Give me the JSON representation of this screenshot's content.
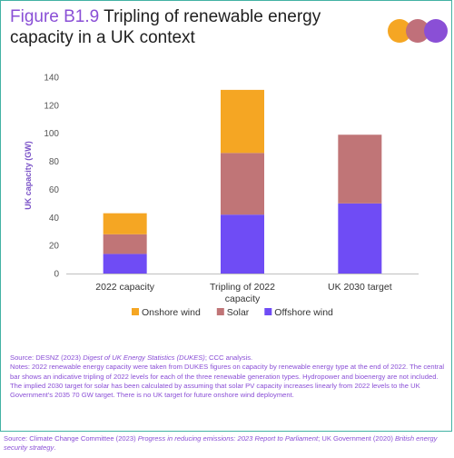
{
  "header": {
    "figure_label": "Figure B1.9",
    "title_text": "Tripling of renewable energy capacity in a UK context"
  },
  "logo": {
    "icon": "ccc-three-circles-icon",
    "colors": [
      "#f5a623",
      "#c0707a",
      "#8a4fd6"
    ]
  },
  "chart_data": {
    "type": "bar",
    "stacked": true,
    "categories": [
      "2022 capacity",
      "Tripling of 2022 capacity",
      "UK 2030 target"
    ],
    "series": [
      {
        "name": "Offshore wind",
        "color": "#6f4cf5",
        "values": [
          14,
          42,
          50
        ]
      },
      {
        "name": "Solar",
        "color": "#c07577",
        "values": [
          14,
          44,
          49
        ]
      },
      {
        "name": "Onshore wind",
        "color": "#f5a623",
        "values": [
          15,
          45,
          0
        ]
      }
    ],
    "ylabel": "UK capacity (GW)",
    "ylim": [
      0,
      140
    ],
    "yticks": [
      0,
      20,
      40,
      60,
      80,
      100,
      120,
      140
    ],
    "legend_order": [
      "Onshore wind",
      "Solar",
      "Offshore wind"
    ],
    "legend_position": "bottom",
    "grid": false
  },
  "notes": {
    "source_prefix": "Source: DESNZ (2023) ",
    "source_italic": "Digest of UK Energy Statistics (DUKES)",
    "source_suffix": "; CCC analysis.",
    "body": "Notes: 2022 renewable energy capacity were taken from DUKES figures on capacity by renewable energy type at the end of 2022. The central bar shows an indicative tripling of 2022 levels for each of the three renewable generation types. Hydropower and bioenergy are not included. The implied 2030 target for solar has been calculated by assuming that solar PV capacity increases linearly from 2022 levels to the UK Government's 2035 70 GW target. There is no UK target for future onshore wind deployment."
  },
  "footer": {
    "prefix": "Source: Climate Change Committee (2023) ",
    "italic1": "Progress in reducing emissions: 2023 Report to Parliament",
    "middle": "; UK Government (2020) ",
    "italic2": "British energy security strategy",
    "suffix": "."
  }
}
